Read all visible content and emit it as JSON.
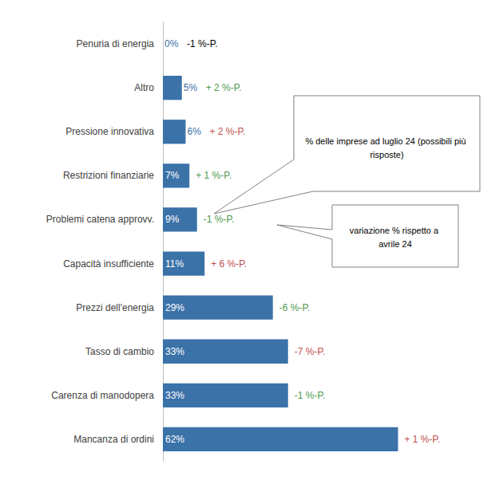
{
  "chart_data": {
    "type": "bar",
    "orientation": "horizontal",
    "categories": [
      "Penuria di energia",
      "Altro",
      "Pressione innovativa",
      "Restrizioni finanziarie",
      "Problemi catena approvv.",
      "Capacità insufficiente",
      "Prezzi dell'energia",
      "Tasso di cambio",
      "Carenza di manodopera",
      "Mancanza di ordini"
    ],
    "values": [
      0,
      5,
      6,
      7,
      9,
      11,
      29,
      33,
      33,
      62
    ],
    "value_labels": [
      "0%",
      "5%",
      "6%",
      "7%",
      "9%",
      "11%",
      "29%",
      "33%",
      "33%",
      "62%"
    ],
    "data_labels": true,
    "color": "#3b72a8",
    "xlim": [
      0,
      80
    ],
    "grid": false,
    "tick_labels": "y",
    "changes": [
      -1,
      2,
      2,
      1,
      -1,
      6,
      -6,
      -7,
      -1,
      1
    ],
    "change_labels": [
      "-1 %-P.",
      "+ 2 %-P.",
      "+ 2 %-P.",
      "+ 1 %-P.",
      "-1 %-P.",
      "+ 6 %-P.",
      "-6 %-P.",
      "-7 %-P.",
      "-1 %-P.",
      "+ 1 %-P."
    ],
    "change_colors": [
      "#000000",
      "#4e9a4e",
      "#c0504d",
      "#4e9a4e",
      "#4e9a4e",
      "#c0504d",
      "#4e9a4e",
      "#c0504d",
      "#4e9a4e",
      "#c0504d"
    ],
    "annotations": [
      "% delle imprese ad luglio 24 (possibili più risposte)",
      "variazione % rispetto a avrile 24"
    ]
  }
}
